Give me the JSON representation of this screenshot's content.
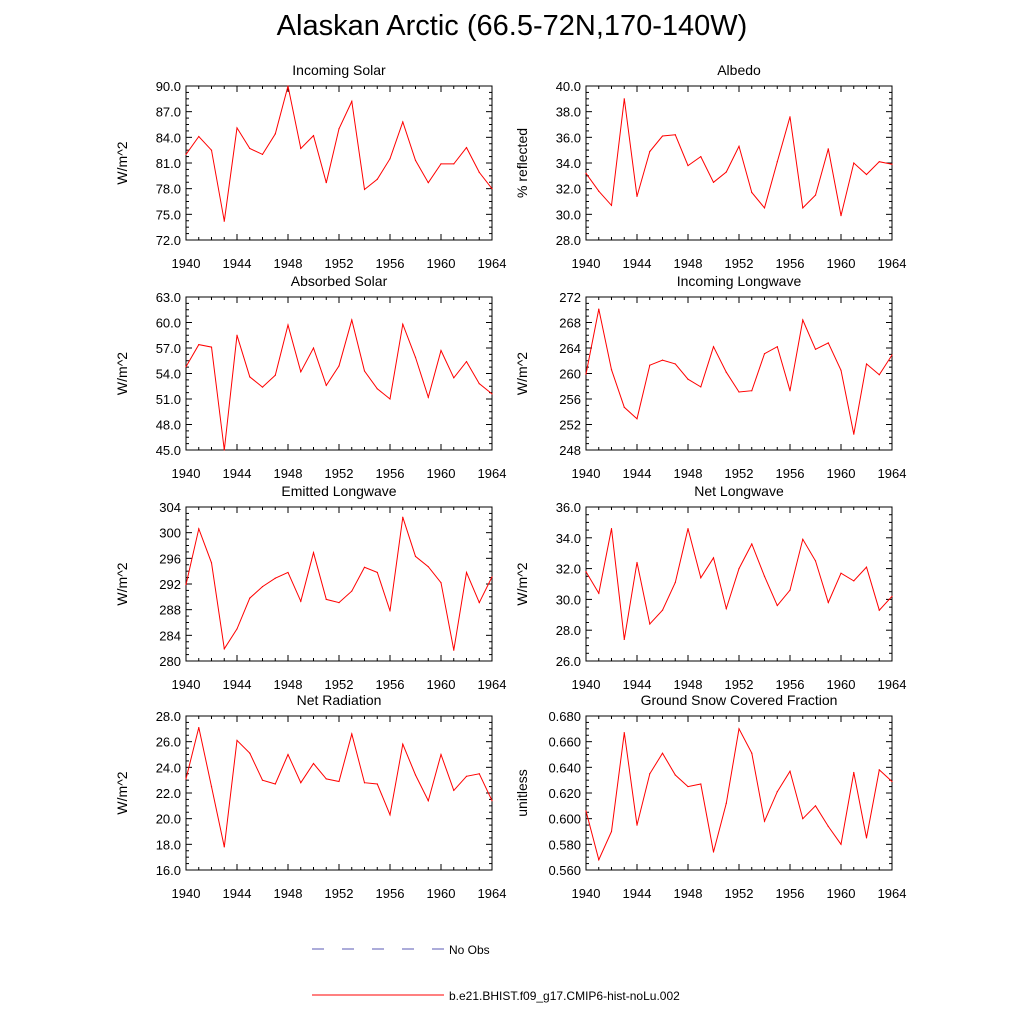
{
  "figure": {
    "title": "Alaskan Arctic (66.5-72N,170-140W)",
    "legend": [
      {
        "label": "No Obs",
        "style": "dashed",
        "color": "#5a5ab4"
      },
      {
        "label": "b.e21.BHIST.f09_g17.CMIP6-hist-noLu.002",
        "style": "solid",
        "color": "#ff0000"
      }
    ]
  },
  "chart_data": [
    {
      "type": "line",
      "title": "Incoming Solar",
      "ylabel": "W/m^2",
      "xlim": [
        1940,
        1964
      ],
      "ylim": [
        72,
        90
      ],
      "xticks": [
        1940,
        1944,
        1948,
        1952,
        1956,
        1960,
        1964
      ],
      "yticks": [
        "72.0",
        "75.0",
        "78.0",
        "81.0",
        "84.0",
        "87.0",
        "90.0"
      ],
      "series": [
        {
          "color": "#ff0000",
          "x": [
            1940,
            1941,
            1942,
            1943,
            1944,
            1945,
            1946,
            1947,
            1948,
            1949,
            1950,
            1951,
            1952,
            1953,
            1954,
            1955,
            1956,
            1957,
            1958,
            1959,
            1960,
            1961,
            1962,
            1963,
            1964
          ],
          "y": [
            82.0,
            84.1,
            82.5,
            74.2,
            85.1,
            82.7,
            82.0,
            84.4,
            90.0,
            82.7,
            84.2,
            78.7,
            85.0,
            88.2,
            77.9,
            79.1,
            81.5,
            85.8,
            81.3,
            78.7,
            80.9,
            80.9,
            82.8,
            79.9,
            78.0
          ]
        }
      ]
    },
    {
      "type": "line",
      "title": "Albedo",
      "ylabel": "% reflected",
      "xlim": [
        1940,
        1964
      ],
      "ylim": [
        28,
        40
      ],
      "xticks": [
        1940,
        1944,
        1948,
        1952,
        1956,
        1960,
        1964
      ],
      "yticks": [
        "28.0",
        "30.0",
        "32.0",
        "34.0",
        "36.0",
        "38.0",
        "40.0"
      ],
      "series": [
        {
          "color": "#ff0000",
          "x": [
            1940,
            1941,
            1942,
            1943,
            1944,
            1945,
            1946,
            1947,
            1948,
            1949,
            1950,
            1951,
            1952,
            1953,
            1954,
            1955,
            1956,
            1957,
            1958,
            1959,
            1960,
            1961,
            1962,
            1963,
            1964
          ],
          "y": [
            33.2,
            31.8,
            30.7,
            39.0,
            31.4,
            34.9,
            36.1,
            36.2,
            33.8,
            34.5,
            32.5,
            33.3,
            35.3,
            31.7,
            30.5,
            34.1,
            37.6,
            30.5,
            31.5,
            35.1,
            29.9,
            34.0,
            33.1,
            34.1,
            33.9
          ]
        }
      ]
    },
    {
      "type": "line",
      "title": "Absorbed Solar",
      "ylabel": "W/m^2",
      "xlim": [
        1940,
        1964
      ],
      "ylim": [
        45,
        63
      ],
      "xticks": [
        1940,
        1944,
        1948,
        1952,
        1956,
        1960,
        1964
      ],
      "yticks": [
        "45.0",
        "48.0",
        "51.0",
        "54.0",
        "57.0",
        "60.0",
        "63.0"
      ],
      "series": [
        {
          "color": "#ff0000",
          "x": [
            1940,
            1941,
            1942,
            1943,
            1944,
            1945,
            1946,
            1947,
            1948,
            1949,
            1950,
            1951,
            1952,
            1953,
            1954,
            1955,
            1956,
            1957,
            1958,
            1959,
            1960,
            1961,
            1962,
            1963,
            1964
          ],
          "y": [
            54.8,
            57.4,
            57.1,
            45.0,
            58.5,
            53.6,
            52.4,
            53.8,
            59.7,
            54.2,
            57.0,
            52.6,
            54.9,
            60.3,
            54.3,
            52.2,
            51.0,
            59.8,
            55.9,
            51.2,
            56.7,
            53.5,
            55.4,
            52.8,
            51.6
          ]
        }
      ]
    },
    {
      "type": "line",
      "title": "Incoming Longwave",
      "ylabel": "W/m^2",
      "xlim": [
        1940,
        1964
      ],
      "ylim": [
        248,
        272
      ],
      "xticks": [
        1940,
        1944,
        1948,
        1952,
        1956,
        1960,
        1964
      ],
      "yticks": [
        "248",
        "252",
        "256",
        "260",
        "264",
        "268",
        "272"
      ],
      "series": [
        {
          "color": "#ff0000",
          "x": [
            1940,
            1941,
            1942,
            1943,
            1944,
            1945,
            1946,
            1947,
            1948,
            1949,
            1950,
            1951,
            1952,
            1953,
            1954,
            1955,
            1956,
            1957,
            1958,
            1959,
            1960,
            1961,
            1962,
            1963,
            1964
          ],
          "y": [
            259.9,
            270.1,
            260.6,
            254.7,
            252.9,
            261.3,
            262.1,
            261.5,
            259.1,
            257.9,
            264.2,
            260.2,
            257.1,
            257.3,
            263.1,
            264.2,
            257.3,
            268.4,
            263.8,
            264.8,
            260.5,
            250.5,
            261.5,
            259.8,
            262.9
          ]
        }
      ]
    },
    {
      "type": "line",
      "title": "Emitted Longwave",
      "ylabel": "W/m^2",
      "xlim": [
        1940,
        1964
      ],
      "ylim": [
        280,
        304
      ],
      "xticks": [
        1940,
        1944,
        1948,
        1952,
        1956,
        1960,
        1964
      ],
      "yticks": [
        "280",
        "284",
        "288",
        "292",
        "296",
        "300",
        "304"
      ],
      "series": [
        {
          "color": "#ff0000",
          "x": [
            1940,
            1941,
            1942,
            1943,
            1944,
            1945,
            1946,
            1947,
            1948,
            1949,
            1950,
            1951,
            1952,
            1953,
            1954,
            1955,
            1956,
            1957,
            1958,
            1959,
            1960,
            1961,
            1962,
            1963,
            1964
          ],
          "y": [
            291.9,
            300.6,
            295.3,
            281.9,
            285.0,
            289.8,
            291.6,
            292.9,
            293.8,
            289.3,
            296.9,
            289.6,
            289.1,
            290.9,
            294.6,
            293.8,
            287.8,
            302.4,
            296.3,
            294.7,
            292.2,
            281.7,
            293.8,
            289.1,
            293.1
          ]
        }
      ]
    },
    {
      "type": "line",
      "title": "Net Longwave",
      "ylabel": "W/m^2",
      "xlim": [
        1940,
        1964
      ],
      "ylim": [
        26,
        36
      ],
      "xticks": [
        1940,
        1944,
        1948,
        1952,
        1956,
        1960,
        1964
      ],
      "yticks": [
        "26.0",
        "28.0",
        "30.0",
        "32.0",
        "34.0",
        "36.0"
      ],
      "series": [
        {
          "color": "#ff0000",
          "x": [
            1940,
            1941,
            1942,
            1943,
            1944,
            1945,
            1946,
            1947,
            1948,
            1949,
            1950,
            1951,
            1952,
            1953,
            1954,
            1955,
            1956,
            1957,
            1958,
            1959,
            1960,
            1961,
            1962,
            1963,
            1964
          ],
          "y": [
            31.8,
            30.4,
            34.6,
            27.4,
            32.4,
            28.4,
            29.3,
            31.1,
            34.6,
            31.4,
            32.7,
            29.4,
            32.0,
            33.6,
            31.5,
            29.6,
            30.6,
            33.9,
            32.5,
            29.8,
            31.7,
            31.2,
            32.1,
            29.3,
            30.2
          ]
        }
      ]
    },
    {
      "type": "line",
      "title": "Net Radiation",
      "ylabel": "W/m^2",
      "xlim": [
        1940,
        1964
      ],
      "ylim": [
        16,
        28
      ],
      "xticks": [
        1940,
        1944,
        1948,
        1952,
        1956,
        1960,
        1964
      ],
      "yticks": [
        "16.0",
        "18.0",
        "20.0",
        "22.0",
        "24.0",
        "26.0",
        "28.0"
      ],
      "series": [
        {
          "color": "#ff0000",
          "x": [
            1940,
            1941,
            1942,
            1943,
            1944,
            1945,
            1946,
            1947,
            1948,
            1949,
            1950,
            1951,
            1952,
            1953,
            1954,
            1955,
            1956,
            1957,
            1958,
            1959,
            1960,
            1961,
            1962,
            1963,
            1964
          ],
          "y": [
            23.1,
            27.1,
            22.5,
            17.8,
            26.1,
            25.1,
            23.0,
            22.7,
            25.0,
            22.8,
            24.3,
            23.1,
            22.9,
            26.6,
            22.8,
            22.7,
            20.3,
            25.8,
            23.4,
            21.4,
            25.0,
            22.2,
            23.3,
            23.5,
            21.4
          ]
        }
      ]
    },
    {
      "type": "line",
      "title": "Ground Snow Covered Fraction",
      "ylabel": "unitless",
      "xlim": [
        1940,
        1964
      ],
      "ylim": [
        0.56,
        0.68
      ],
      "xticks": [
        1940,
        1944,
        1948,
        1952,
        1956,
        1960,
        1964
      ],
      "yticks": [
        "0.560",
        "0.580",
        "0.600",
        "0.620",
        "0.640",
        "0.660",
        "0.680"
      ],
      "series": [
        {
          "color": "#ff0000",
          "x": [
            1940,
            1941,
            1942,
            1943,
            1944,
            1945,
            1946,
            1947,
            1948,
            1949,
            1950,
            1951,
            1952,
            1953,
            1954,
            1955,
            1956,
            1957,
            1958,
            1959,
            1960,
            1961,
            1962,
            1963,
            1964
          ],
          "y": [
            0.606,
            0.568,
            0.59,
            0.667,
            0.595,
            0.635,
            0.651,
            0.634,
            0.625,
            0.627,
            0.574,
            0.612,
            0.67,
            0.651,
            0.598,
            0.621,
            0.637,
            0.6,
            0.61,
            0.594,
            0.58,
            0.636,
            0.585,
            0.638,
            0.629
          ]
        }
      ]
    }
  ]
}
